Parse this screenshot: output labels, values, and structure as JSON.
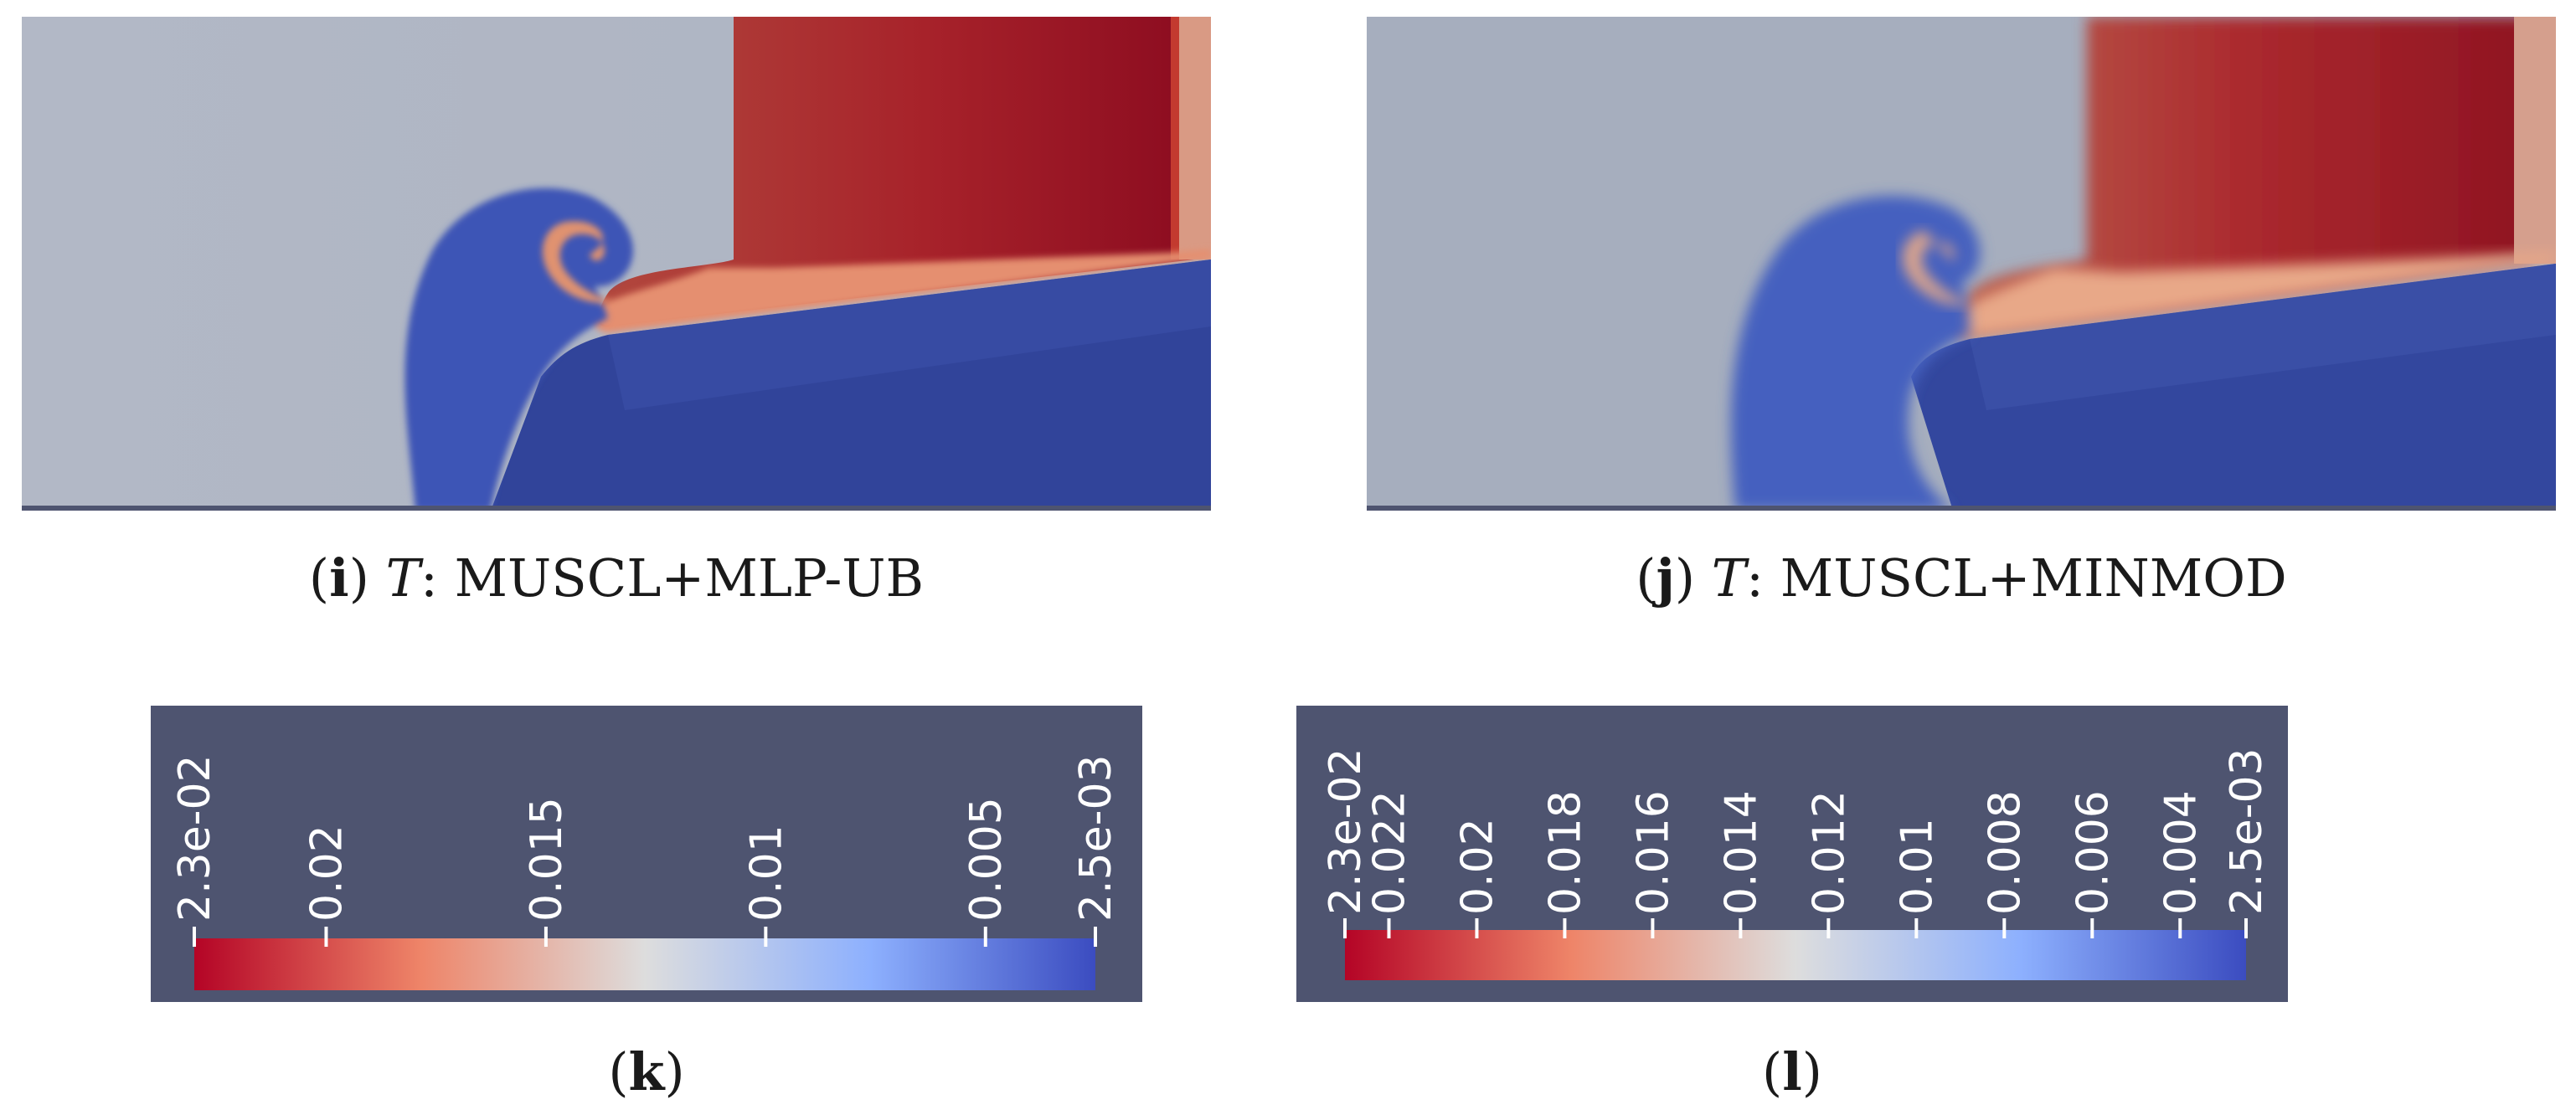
{
  "panels": [
    {
      "letter": "i",
      "variable": "T",
      "method": "MUSCL+MLP-UB"
    },
    {
      "letter": "j",
      "variable": "T",
      "method": "MUSCL+MINMOD"
    }
  ],
  "colorbars": [
    {
      "letter": "k",
      "min_label": "2.5e-03",
      "max_label": "2.3e-02",
      "min": 0.0025,
      "max": 0.023,
      "ticks": [
        "2.3e-02",
        "0.02",
        "0.015",
        "0.01",
        "0.005",
        "2.5e-03"
      ],
      "tick_values": [
        0.023,
        0.02,
        0.015,
        0.01,
        0.005,
        0.0025
      ]
    },
    {
      "letter": "l",
      "min_label": "2.5e-03",
      "max_label": "2.3e-02",
      "min": 0.0025,
      "max": 0.023,
      "ticks": [
        "2.3e-02",
        "0.022",
        "0.02",
        "0.018",
        "0.016",
        "0.014",
        "0.012",
        "0.01",
        "0.008",
        "0.006",
        "0.004",
        "2.5e-03"
      ],
      "tick_values": [
        0.023,
        0.022,
        0.02,
        0.018,
        0.016,
        0.014,
        0.012,
        0.01,
        0.008,
        0.006,
        0.004,
        0.0025
      ]
    }
  ],
  "colormap": {
    "name": "cool-to-warm",
    "high": "#b40426",
    "mid": "#dddddd",
    "low": "#3b4cc0",
    "background": "#4e5470"
  }
}
